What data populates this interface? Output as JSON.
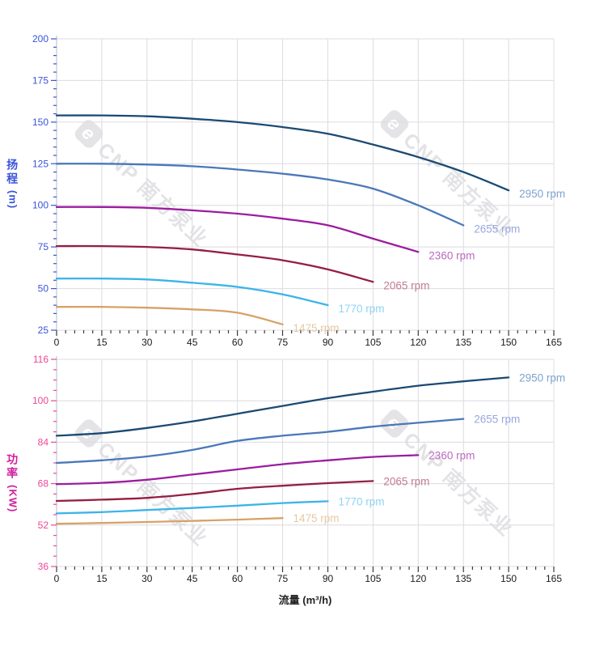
{
  "watermark": {
    "logo_letter": "e",
    "text": "CNP 南方泵业"
  },
  "chart_data": [
    {
      "type": "line",
      "title": "",
      "ylabel": "扬程(m)",
      "ylabel_chars": "扬程",
      "ylabel_unit": "(m)",
      "xlabel": "",
      "xlim": [
        0,
        165
      ],
      "ylim": [
        25,
        200
      ],
      "x_ticks": [
        0,
        15,
        30,
        45,
        60,
        75,
        90,
        105,
        120,
        135,
        150,
        165
      ],
      "x_minor_step": 3,
      "y_ticks": [
        25,
        50,
        75,
        100,
        125,
        150,
        175,
        200
      ],
      "y_minor_step": 5,
      "grid": true,
      "axis_color": "#3a53d9",
      "x_tick_color": "#1a1a1a",
      "grid_color": "#dcdce2",
      "frame_color": "#c6cbd6",
      "legend_position": "end-of-curve",
      "series": [
        {
          "name": "2950 rpm",
          "rpm": 2950,
          "color": "#1b4a73",
          "label_color": "#7fa3cf",
          "x": [
            0,
            15,
            30,
            45,
            60,
            75,
            90,
            105,
            120,
            135,
            150
          ],
          "y": [
            154,
            154,
            153.5,
            152,
            150,
            147,
            143,
            136.5,
            129,
            120,
            109
          ]
        },
        {
          "name": "2655 rpm",
          "rpm": 2655,
          "color": "#4a78b8",
          "label_color": "#97a8de",
          "x": [
            0,
            15,
            30,
            45,
            60,
            75,
            90,
            105,
            120,
            135
          ],
          "y": [
            125,
            125,
            124.5,
            123.5,
            121.5,
            119,
            115.5,
            110,
            100,
            88
          ]
        },
        {
          "name": "2360 rpm",
          "rpm": 2360,
          "color": "#9c1d9e",
          "label_color": "#bb6abe",
          "x": [
            0,
            15,
            30,
            45,
            60,
            75,
            90,
            105,
            120
          ],
          "y": [
            99,
            99,
            98.5,
            97,
            95,
            92,
            88,
            80,
            72
          ]
        },
        {
          "name": "2065 rpm",
          "rpm": 2065,
          "color": "#941f42",
          "label_color": "#c27b92",
          "x": [
            0,
            15,
            30,
            45,
            60,
            75,
            90,
            105
          ],
          "y": [
            75.5,
            75.5,
            75,
            73.5,
            70.5,
            67,
            61.5,
            54
          ]
        },
        {
          "name": "1770 rpm",
          "rpm": 1770,
          "color": "#3cb4e8",
          "label_color": "#8fd2f3",
          "x": [
            0,
            15,
            30,
            45,
            60,
            75,
            90
          ],
          "y": [
            56,
            56,
            55.5,
            53.5,
            51,
            46.5,
            40
          ]
        },
        {
          "name": "1475 rpm",
          "rpm": 1475,
          "color": "#d6a269",
          "label_color": "#e5c9a2",
          "x": [
            0,
            15,
            30,
            45,
            60,
            75
          ],
          "y": [
            39,
            39,
            38.5,
            37.5,
            35.5,
            28.5
          ]
        }
      ]
    },
    {
      "type": "line",
      "title": "",
      "ylabel": "功率(KW)",
      "ylabel_chars": "功率",
      "ylabel_unit": "(KW)",
      "xlabel": "流量 (m³/h)",
      "xlim": [
        0,
        165
      ],
      "ylim": [
        36,
        116
      ],
      "x_ticks": [
        0,
        15,
        30,
        45,
        60,
        75,
        90,
        105,
        120,
        135,
        150,
        165
      ],
      "x_minor_step": 3,
      "y_ticks": [
        36,
        52,
        68,
        84,
        100,
        116
      ],
      "y_minor_step": 4,
      "grid": true,
      "axis_color": "#ee4695",
      "x_tick_color": "#1a1a1a",
      "grid_color": "#dcdce2",
      "frame_color": "#c6cbd6",
      "legend_position": "end-of-curve",
      "series": [
        {
          "name": "2950 rpm",
          "rpm": 2950,
          "color": "#1b4a73",
          "label_color": "#7fa3cf",
          "x": [
            0,
            15,
            30,
            45,
            60,
            75,
            90,
            105,
            120,
            135,
            150
          ],
          "y": [
            86.5,
            87.5,
            89.5,
            92,
            95,
            98,
            101,
            103.5,
            105.8,
            107.5,
            109
          ]
        },
        {
          "name": "2655 rpm",
          "rpm": 2655,
          "color": "#4a78b8",
          "label_color": "#97a8de",
          "x": [
            0,
            15,
            30,
            45,
            60,
            75,
            90,
            105,
            120,
            135
          ],
          "y": [
            76,
            77,
            78.5,
            81,
            84.5,
            86.5,
            88,
            90,
            91.5,
            93
          ]
        },
        {
          "name": "2360 rpm",
          "rpm": 2360,
          "color": "#9c1d9e",
          "label_color": "#bb6abe",
          "x": [
            0,
            15,
            30,
            45,
            60,
            75,
            90,
            105,
            120
          ],
          "y": [
            67.8,
            68.3,
            69.5,
            71.5,
            73.5,
            75.5,
            77,
            78.3,
            79
          ]
        },
        {
          "name": "2065 rpm",
          "rpm": 2065,
          "color": "#941f42",
          "label_color": "#c27b92",
          "x": [
            0,
            15,
            30,
            45,
            60,
            75,
            90,
            105
          ],
          "y": [
            61.3,
            61.8,
            62.5,
            64,
            66,
            67.2,
            68.2,
            69
          ]
        },
        {
          "name": "1770 rpm",
          "rpm": 1770,
          "color": "#3cb4e8",
          "label_color": "#8fd2f3",
          "x": [
            0,
            15,
            30,
            45,
            60,
            75,
            90
          ],
          "y": [
            56.5,
            57,
            57.8,
            58.6,
            59.5,
            60.5,
            61.2
          ]
        },
        {
          "name": "1475 rpm",
          "rpm": 1475,
          "color": "#d6a269",
          "label_color": "#e5c9a2",
          "x": [
            0,
            15,
            30,
            45,
            60,
            75
          ],
          "y": [
            52.5,
            52.8,
            53.2,
            53.6,
            54.1,
            54.7
          ]
        }
      ]
    }
  ]
}
